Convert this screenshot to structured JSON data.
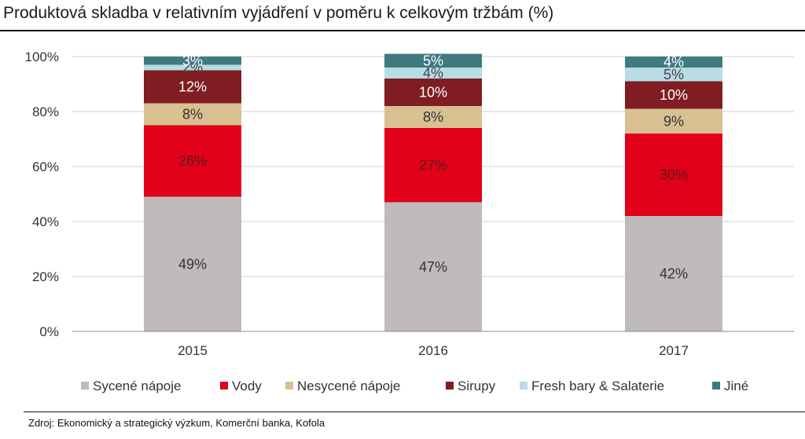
{
  "title": "Produktová skladba v relativním vyjádření v poměru k celkovým tržbám (%)",
  "source": "Zdroj: Ekonomický a strategický výzkum, Komerční banka, Kofola",
  "chart_data": {
    "type": "bar",
    "stacked": true,
    "categories": [
      "2015",
      "2016",
      "2017"
    ],
    "ylim": [
      0,
      100
    ],
    "yticks": [
      "0%",
      "20%",
      "40%",
      "60%",
      "80%",
      "100%"
    ],
    "grid": true,
    "legend_position": "bottom",
    "series": [
      {
        "name": "Sycené nápoje",
        "color": "#bfbbba",
        "labelColor": "#333333",
        "values": [
          49,
          47,
          42
        ],
        "labels": [
          "49%",
          "47%",
          "42%"
        ]
      },
      {
        "name": "Vody",
        "color": "#e2001a",
        "labelColor": "#5a1a1a",
        "values": [
          26,
          27,
          30
        ],
        "labels": [
          "26%",
          "27%",
          "30%"
        ]
      },
      {
        "name": "Nesycené nápoje",
        "color": "#d8c090",
        "labelColor": "#333333",
        "values": [
          8,
          8,
          9
        ],
        "labels": [
          "8%",
          "8%",
          "9%"
        ]
      },
      {
        "name": "Sirupy",
        "color": "#7f1d22",
        "labelColor": "#ffffff",
        "values": [
          12,
          10,
          10
        ],
        "labels": [
          "12%",
          "10%",
          "10%"
        ]
      },
      {
        "name": "Fresh bary & Salaterie",
        "color": "#b7dde5",
        "labelColor": "#444444",
        "values": [
          2,
          4,
          5
        ],
        "labels": [
          "2%",
          "4%",
          "5%"
        ]
      },
      {
        "name": "Jiné",
        "color": "#3f7a80",
        "labelColor": "#ffffff",
        "values": [
          3,
          5,
          4
        ],
        "labels": [
          "3%",
          "5%",
          "4%"
        ]
      }
    ]
  }
}
